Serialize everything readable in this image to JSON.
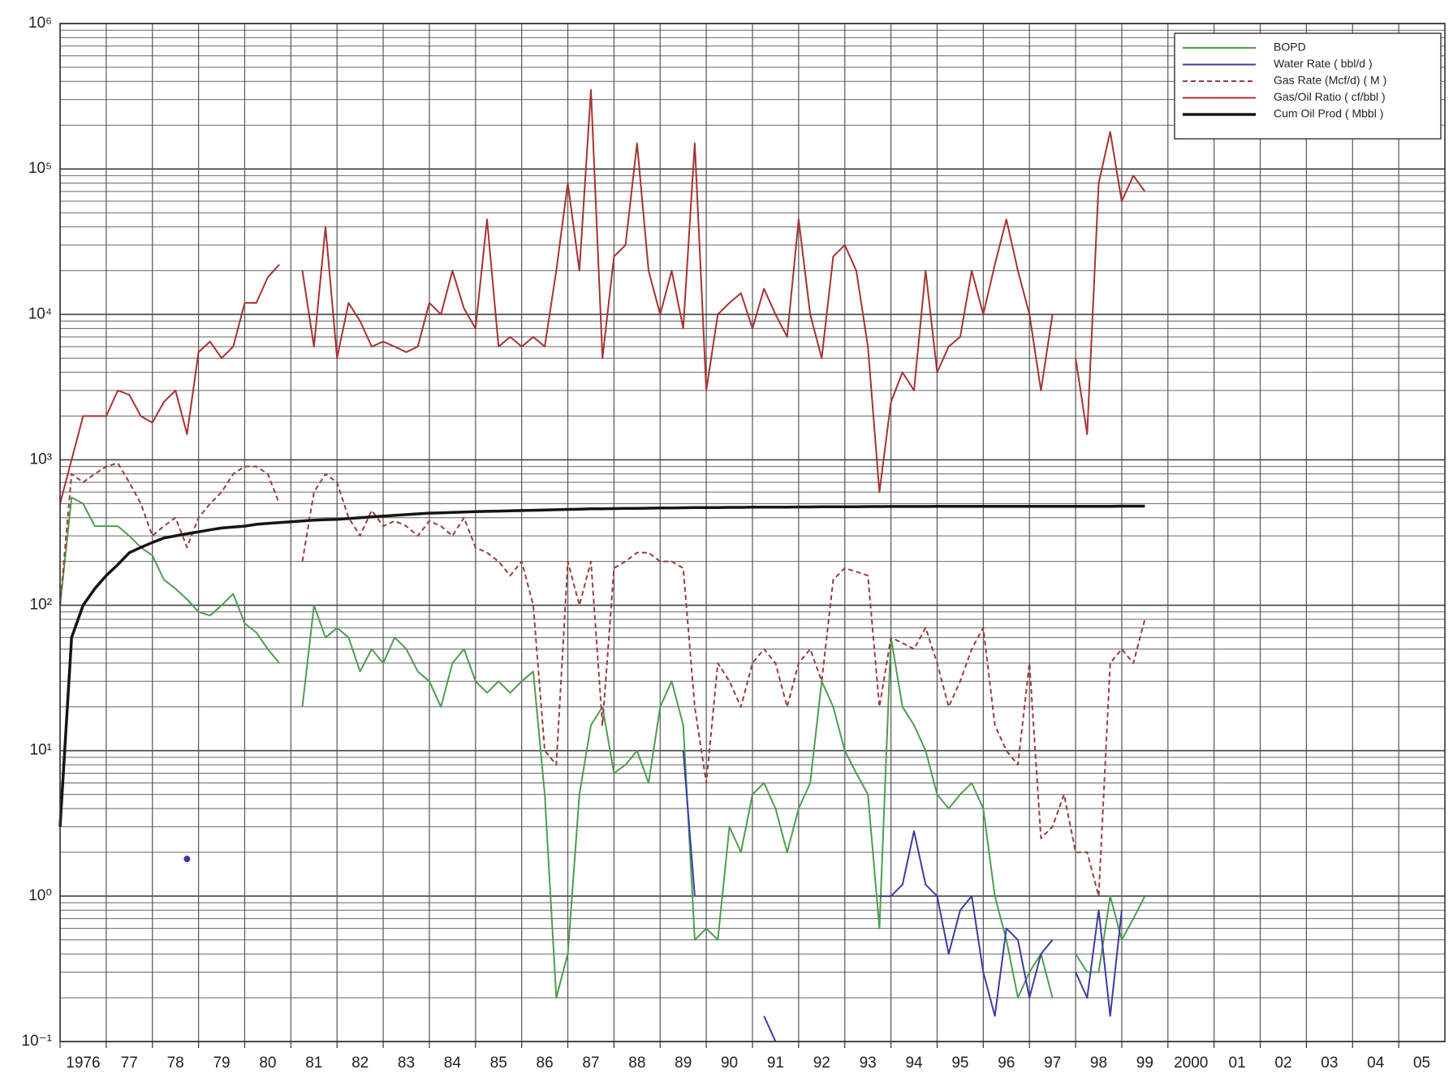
{
  "chart_data": {
    "type": "line",
    "log_y": true,
    "grid": true,
    "minor_grid": true,
    "legend": "upper right",
    "xlim": [
      1976,
      2006
    ],
    "xticks": [
      1976,
      {
        "value": 1977,
        "label": "77"
      },
      {
        "value": 1978,
        "label": "78"
      },
      {
        "value": 1979,
        "label": "79"
      },
      {
        "value": 1980,
        "label": "80"
      },
      {
        "value": 1981,
        "label": "81"
      },
      {
        "value": 1982,
        "label": "82"
      },
      {
        "value": 1983,
        "label": "83"
      },
      {
        "value": 1984,
        "label": "84"
      },
      {
        "value": 1985,
        "label": "85"
      },
      {
        "value": 1986,
        "label": "86"
      },
      {
        "value": 1987,
        "label": "87"
      },
      {
        "value": 1988,
        "label": "88"
      },
      {
        "value": 1989,
        "label": "89"
      },
      {
        "value": 1990,
        "label": "90"
      },
      {
        "value": 1991,
        "label": "91"
      },
      {
        "value": 1992,
        "label": "92"
      },
      {
        "value": 1993,
        "label": "93"
      },
      {
        "value": 1994,
        "label": "94"
      },
      {
        "value": 1995,
        "label": "95"
      },
      {
        "value": 1996,
        "label": "96"
      },
      {
        "value": 1997,
        "label": "97"
      },
      {
        "value": 1998,
        "label": "98"
      },
      {
        "value": 1999,
        "label": "99"
      },
      2000,
      {
        "value": 2001,
        "label": "01"
      },
      {
        "value": 2002,
        "label": "02"
      },
      {
        "value": 2003,
        "label": "03"
      },
      {
        "value": 2004,
        "label": "04"
      },
      {
        "value": 2005,
        "label": "05"
      }
    ],
    "ylim": [
      0.1,
      1000000
    ],
    "yticks": [
      {
        "value": 0.1,
        "label": "10⁻¹"
      },
      {
        "value": 1,
        "label": "10⁰"
      },
      {
        "value": 10,
        "label": "10¹"
      },
      {
        "value": 100,
        "label": "10²"
      },
      {
        "value": 1000,
        "label": "10³"
      },
      {
        "value": 10000,
        "label": "10⁴"
      },
      {
        "value": 100000,
        "label": "10⁵"
      },
      {
        "value": 1000000,
        "label": "10⁶"
      }
    ],
    "x": [
      1976,
      1976.25,
      1976.5,
      1976.75,
      1977,
      1977.25,
      1977.5,
      1977.75,
      1978,
      1978.25,
      1978.5,
      1978.75,
      1979,
      1979.25,
      1979.5,
      1979.75,
      1980,
      1980.25,
      1980.5,
      1980.75,
      1981,
      1981.25,
      1981.5,
      1981.75,
      1982,
      1982.25,
      1982.5,
      1982.75,
      1983,
      1983.25,
      1983.5,
      1983.75,
      1984,
      1984.25,
      1984.5,
      1984.75,
      1985,
      1985.25,
      1985.5,
      1985.75,
      1986,
      1986.25,
      1986.5,
      1986.75,
      1987,
      1987.25,
      1987.5,
      1987.75,
      1988,
      1988.25,
      1988.5,
      1988.75,
      1989,
      1989.25,
      1989.5,
      1989.75,
      1990,
      1990.25,
      1990.5,
      1990.75,
      1991,
      1991.25,
      1991.5,
      1991.75,
      1992,
      1992.25,
      1992.5,
      1992.75,
      1993,
      1993.25,
      1993.5,
      1993.75,
      1994,
      1994.25,
      1994.5,
      1994.75,
      1995,
      1995.25,
      1995.5,
      1995.75,
      1996,
      1996.25,
      1996.5,
      1996.75,
      1997,
      1997.25,
      1997.5,
      1997.75,
      1998,
      1998.25,
      1998.5,
      1998.75,
      1999,
      1999.25,
      1999.5
    ],
    "series": [
      {
        "name": "BOPD",
        "color": "#4f9d50",
        "style": "solid",
        "width": 2,
        "values": [
          100,
          550,
          500,
          350,
          350,
          350,
          300,
          250,
          220,
          150,
          130,
          110,
          90,
          85,
          100,
          120,
          75,
          65,
          50,
          40,
          null,
          20,
          100,
          60,
          70,
          60,
          35,
          50,
          40,
          60,
          50,
          35,
          30,
          20,
          40,
          50,
          30,
          25,
          30,
          25,
          30,
          35,
          5,
          0.2,
          0.4,
          5,
          15,
          20,
          7,
          8,
          10,
          6,
          20,
          30,
          15,
          0.5,
          0.6,
          0.5,
          3,
          2,
          5,
          6,
          4,
          2,
          4,
          6,
          30,
          20,
          10,
          7,
          5,
          0.6,
          60,
          20,
          15,
          10,
          5,
          4,
          5,
          6,
          4,
          1,
          0.5,
          0.2,
          0.3,
          0.4,
          0.2,
          null,
          0.4,
          0.3,
          0.3,
          1,
          0.5,
          0.7,
          1
        ]
      },
      {
        "name": "Water Rate ( bbl/d )",
        "color": "#3b3ca3",
        "style": "solid",
        "width": 2,
        "values": [
          null,
          null,
          null,
          null,
          null,
          null,
          null,
          null,
          null,
          null,
          null,
          1.8,
          null,
          null,
          null,
          null,
          null,
          null,
          null,
          null,
          null,
          null,
          null,
          null,
          null,
          null,
          null,
          null,
          null,
          null,
          null,
          null,
          null,
          null,
          null,
          null,
          null,
          null,
          null,
          null,
          null,
          null,
          null,
          null,
          null,
          null,
          null,
          null,
          null,
          null,
          null,
          null,
          null,
          null,
          10,
          1,
          null,
          null,
          null,
          null,
          null,
          0.15,
          0.1,
          null,
          null,
          null,
          null,
          null,
          null,
          null,
          null,
          1,
          1,
          1.2,
          2.8,
          1.2,
          1,
          0.4,
          0.8,
          1,
          0.3,
          0.15,
          0.6,
          0.5,
          0.2,
          0.4,
          0.5,
          null,
          0.3,
          0.2,
          0.8,
          0.15,
          0.8,
          null,
          null
        ]
      },
      {
        "name": "Gas Rate (Mcf/d) ( M )",
        "color": "#9c3c3c",
        "style": "dashed",
        "width": 2,
        "values": [
          100,
          800,
          700,
          800,
          900,
          950,
          700,
          500,
          300,
          350,
          400,
          250,
          400,
          500,
          600,
          800,
          900,
          900,
          800,
          500,
          null,
          200,
          600,
          800,
          700,
          400,
          300,
          450,
          350,
          380,
          350,
          300,
          380,
          350,
          300,
          400,
          250,
          230,
          200,
          160,
          200,
          100,
          10,
          8,
          200,
          100,
          200,
          15,
          180,
          200,
          230,
          230,
          200,
          200,
          180,
          20,
          6,
          40,
          30,
          20,
          40,
          50,
          40,
          20,
          40,
          50,
          30,
          150,
          180,
          170,
          160,
          20,
          60,
          55,
          50,
          70,
          40,
          20,
          30,
          50,
          70,
          15,
          10,
          8,
          40,
          2.5,
          3,
          5,
          2,
          2,
          1,
          40,
          50,
          40,
          80
        ]
      },
      {
        "name": "Gas/Oil Ratio ( cf/bbl )",
        "color": "#a83232",
        "style": "solid",
        "width": 2,
        "values": [
          500,
          1000,
          2000,
          2000,
          2000,
          3000,
          2800,
          2000,
          1800,
          2500,
          3000,
          1500,
          5500,
          6500,
          5000,
          6000,
          12000,
          12000,
          18000,
          22000,
          null,
          20000,
          6000,
          40000,
          5000,
          12000,
          9000,
          6000,
          6500,
          6000,
          5500,
          6000,
          12000,
          10000,
          20000,
          11000,
          8000,
          45000,
          6000,
          7000,
          6000,
          7000,
          6000,
          20000,
          80000,
          20000,
          350000,
          5000,
          25000,
          30000,
          150000,
          20000,
          10000,
          20000,
          8000,
          150000,
          3000,
          10000,
          12000,
          14000,
          8000,
          15000,
          10000,
          7000,
          45000,
          10000,
          5000,
          25000,
          30000,
          20000,
          6000,
          600,
          2500,
          4000,
          3000,
          20000,
          4000,
          6000,
          7000,
          20000,
          10000,
          22000,
          45000,
          20000,
          10000,
          3000,
          10000,
          null,
          5000,
          1500,
          80000,
          180000,
          60000,
          90000,
          70000
        ]
      },
      {
        "name": "Cum Oil Prod ( Mbbl )",
        "color": "#151515",
        "style": "solid",
        "width": 3.5,
        "values": [
          3,
          60,
          100,
          130,
          160,
          190,
          230,
          250,
          270,
          290,
          300,
          310,
          320,
          330,
          340,
          345,
          350,
          360,
          365,
          370,
          375,
          380,
          385,
          388,
          390,
          395,
          400,
          405,
          410,
          415,
          420,
          425,
          430,
          432,
          435,
          437,
          440,
          442,
          444,
          446,
          448,
          450,
          452,
          454,
          456,
          458,
          460,
          461,
          462,
          463,
          464,
          465,
          466,
          467,
          468,
          469,
          470,
          470,
          471,
          471,
          472,
          472,
          473,
          473,
          474,
          474,
          475,
          475,
          476,
          476,
          477,
          477,
          478,
          478,
          478,
          478,
          479,
          479,
          479,
          479,
          479,
          479,
          479,
          479,
          479,
          479,
          479,
          479,
          479,
          479,
          479,
          479,
          480,
          480,
          480
        ]
      }
    ]
  }
}
